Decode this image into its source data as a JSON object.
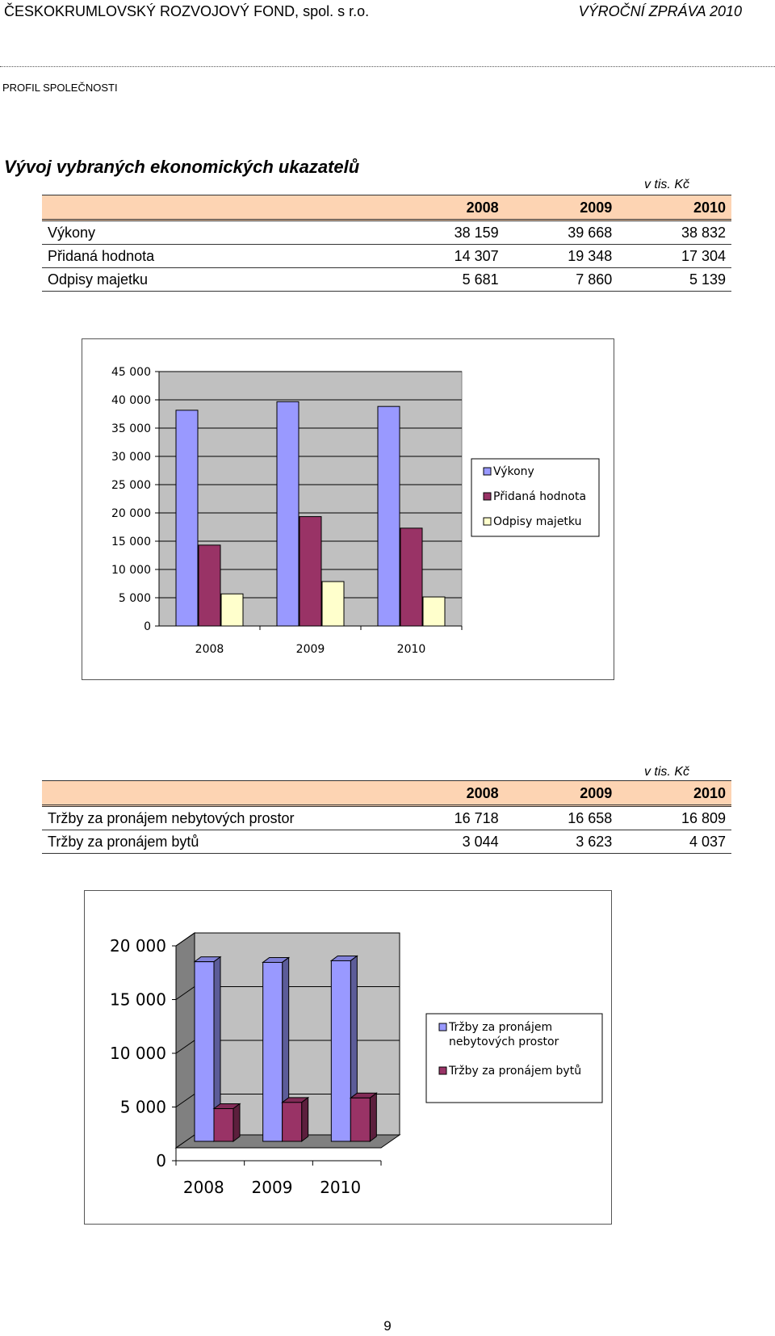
{
  "header": {
    "company": "ČESKOKRUMLOVSKÝ ROZVOJOVÝ FOND, spol. s r.o.",
    "report": "VÝROČNÍ ZPRÁVA 2010"
  },
  "section": "PROFIL SPOLEČNOSTI",
  "title": "Vývoj vybraných ekonomických ukazatelů",
  "table1": {
    "unit": "v tis. Kč",
    "years": [
      "2008",
      "2009",
      "2010"
    ],
    "rows": [
      {
        "label": "Výkony",
        "values": [
          "38 159",
          "39 668",
          "38 832"
        ]
      },
      {
        "label": "Přidaná hodnota",
        "values": [
          "14 307",
          "19 348",
          "17 304"
        ]
      },
      {
        "label": "Odpisy majetku",
        "values": [
          "5 681",
          "7 860",
          "5 139"
        ]
      }
    ]
  },
  "table2": {
    "unit": "v tis. Kč",
    "years": [
      "2008",
      "2009",
      "2010"
    ],
    "rows": [
      {
        "label": "Tržby za pronájem nebytových prostor",
        "values": [
          "16 718",
          "16 658",
          "16 809"
        ]
      },
      {
        "label": "Tržby za pronájem bytů",
        "values": [
          "3 044",
          "3 623",
          "4 037"
        ]
      }
    ]
  },
  "chart_data": [
    {
      "type": "bar",
      "categories": [
        "2008",
        "2009",
        "2010"
      ],
      "series": [
        {
          "name": "Výkony",
          "values": [
            38159,
            39668,
            38832
          ],
          "color": "#9999ff"
        },
        {
          "name": "Přidaná hodnota",
          "values": [
            14307,
            19348,
            17304
          ],
          "color": "#993366"
        },
        {
          "name": "Odpisy majetku",
          "values": [
            5681,
            7860,
            5139
          ],
          "color": "#ffffcc"
        }
      ],
      "yticks": [
        "0",
        "5 000",
        "10 000",
        "15 000",
        "20 000",
        "25 000",
        "30 000",
        "35 000",
        "40 000",
        "45 000"
      ],
      "ylim": [
        0,
        45000
      ],
      "grid": true,
      "plot_bg": "#c0c0c0",
      "legend": "right"
    },
    {
      "type": "bar",
      "style": "3d",
      "categories": [
        "2008",
        "2009",
        "2010"
      ],
      "series": [
        {
          "name": "Tržby za pronájem nebytových prostor",
          "legend_lines": [
            "Tržby za pronájem",
            "nebytových prostor"
          ],
          "values": [
            16718,
            16658,
            16809
          ],
          "color": "#9999ff"
        },
        {
          "name": "Tržby za pronájem bytů",
          "legend_lines": [
            "Tržby za pronájem bytů"
          ],
          "values": [
            3044,
            3623,
            4037
          ],
          "color": "#993366"
        }
      ],
      "yticks": [
        "0",
        "5 000",
        "10 000",
        "15 000",
        "20 000"
      ],
      "ylim": [
        0,
        20000
      ],
      "grid": true,
      "plot_bg": "#c0c0c0",
      "legend": "right"
    }
  ],
  "page_number": "9"
}
